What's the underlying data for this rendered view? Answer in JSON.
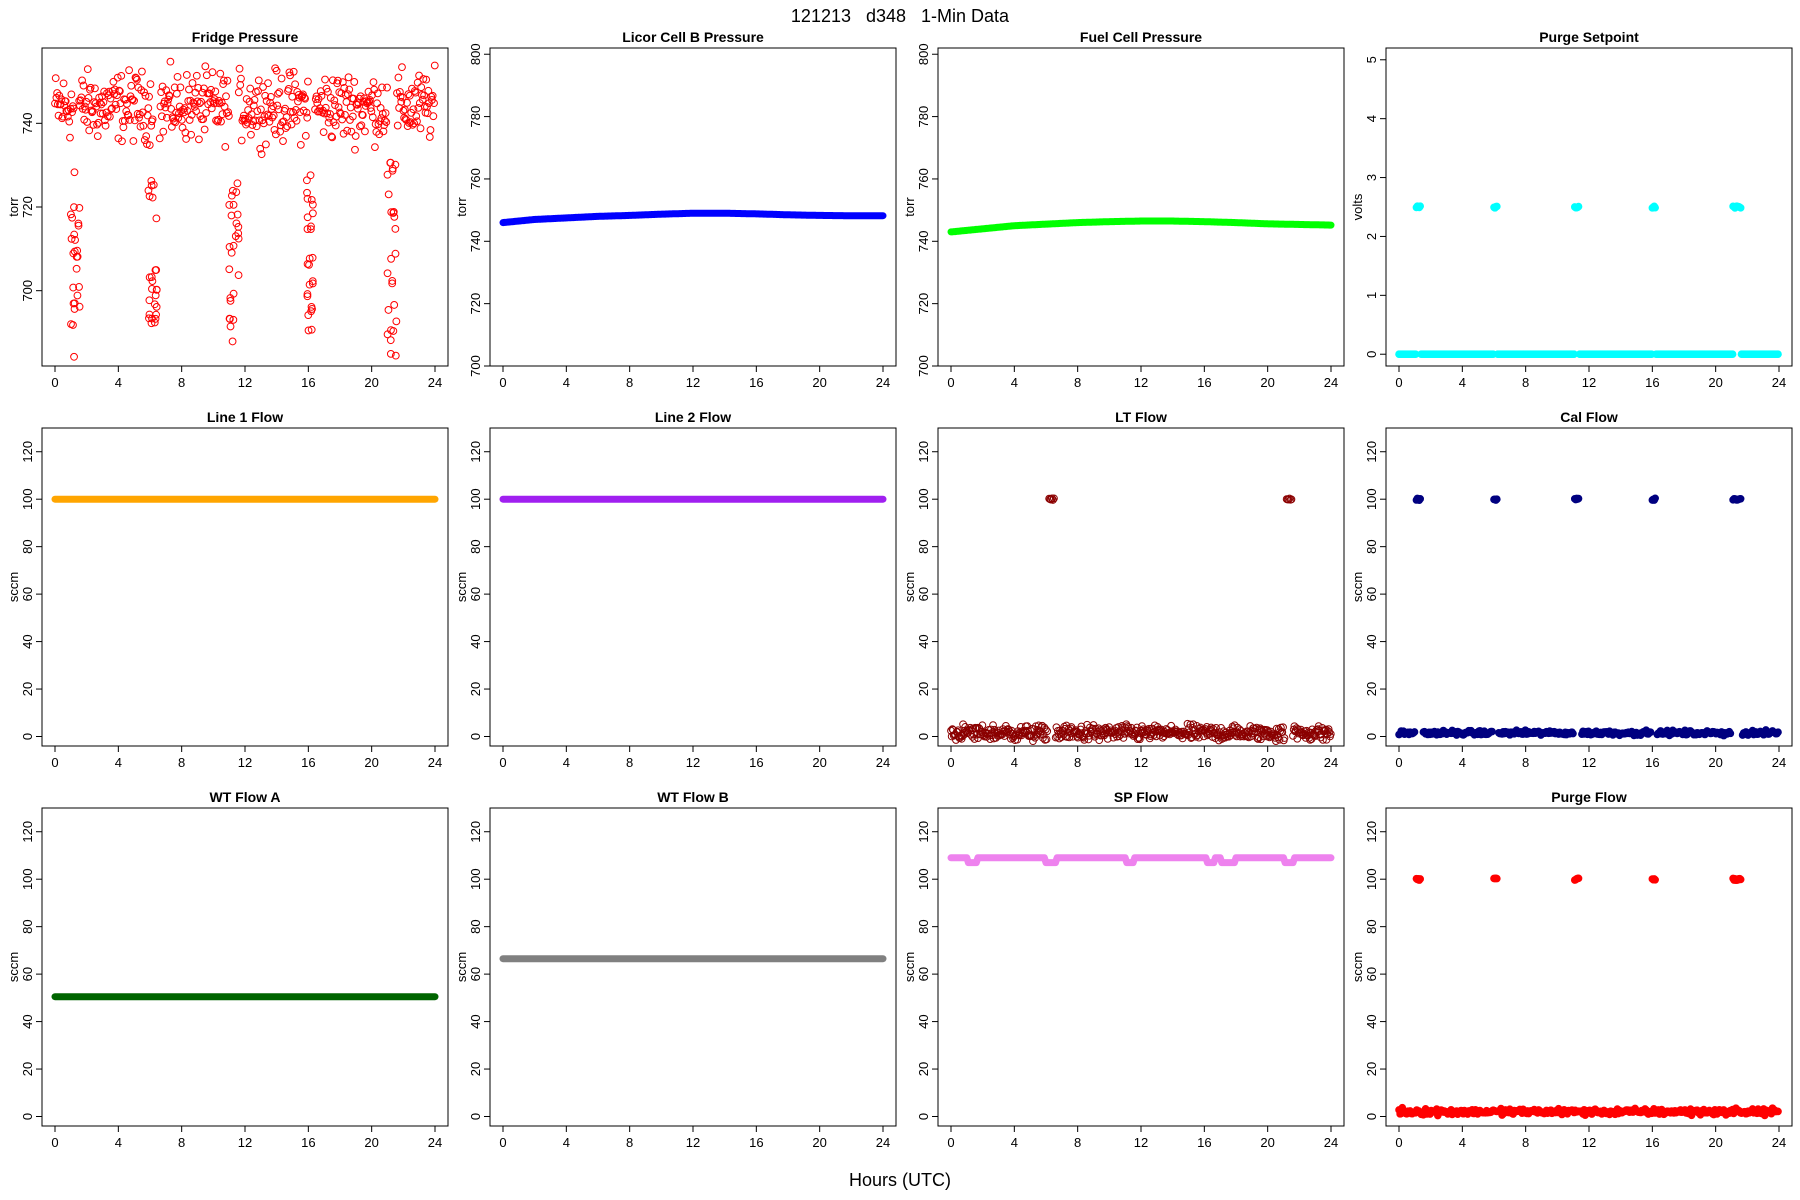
{
  "title": "121213   d348   1-Min Data",
  "xlabel": "Hours (UTC)",
  "chart_data": [
    {
      "type": "scatter",
      "title": "Fridge Pressure",
      "ylabel": "torr",
      "color": "#ff0000",
      "marker": "open",
      "ylim": [
        682,
        758
      ],
      "xlim": [
        0,
        24
      ],
      "yticks": [
        700,
        720,
        740
      ],
      "xticks": [
        0,
        4,
        8,
        12,
        16,
        20,
        24
      ],
      "baseline": {
        "mean": 744,
        "spread": 5
      },
      "gaps": [
        [
          1.2,
          1.5
        ],
        [
          6.2,
          6.6
        ],
        [
          11.0,
          11.6
        ],
        [
          16.0,
          16.4
        ],
        [
          21.0,
          21.6
        ]
      ],
      "dips": [
        {
          "x_range": [
            1.0,
            1.6
          ],
          "y_range": [
            684,
            729
          ]
        },
        {
          "x_range": [
            5.9,
            6.5
          ],
          "y_range": [
            688,
            727
          ]
        },
        {
          "x_range": [
            11.0,
            11.6
          ],
          "y_range": [
            686,
            728
          ]
        },
        {
          "x_range": [
            15.9,
            16.3
          ],
          "y_range": [
            688,
            729
          ]
        },
        {
          "x_range": [
            21.0,
            21.6
          ],
          "y_range": [
            683,
            732
          ]
        }
      ]
    },
    {
      "type": "line",
      "title": "Licor Cell B Pressure",
      "ylabel": "torr",
      "color": "#0000ff",
      "ylim": [
        700,
        802
      ],
      "xlim": [
        0,
        24
      ],
      "yticks": [
        700,
        720,
        740,
        760,
        780,
        800
      ],
      "xticks": [
        0,
        4,
        8,
        12,
        16,
        20,
        24
      ],
      "x": [
        0,
        2,
        4,
        6,
        8,
        10,
        12,
        14,
        16,
        18,
        20,
        22,
        24
      ],
      "y": [
        746,
        747,
        747.5,
        748,
        748.3,
        748.7,
        749,
        749,
        748.8,
        748.5,
        748.3,
        748.2,
        748.2
      ]
    },
    {
      "type": "line",
      "title": "Fuel Cell Pressure",
      "ylabel": "torr",
      "color": "#00ff00",
      "ylim": [
        700,
        802
      ],
      "xlim": [
        0,
        24
      ],
      "yticks": [
        700,
        720,
        740,
        760,
        780,
        800
      ],
      "xticks": [
        0,
        4,
        8,
        12,
        16,
        20,
        24
      ],
      "x": [
        0,
        2,
        4,
        6,
        8,
        10,
        12,
        14,
        16,
        18,
        20,
        22,
        24
      ],
      "y": [
        743,
        744,
        745,
        745.5,
        746,
        746.3,
        746.5,
        746.5,
        746.3,
        746,
        745.6,
        745.4,
        745.2
      ]
    },
    {
      "type": "scatter",
      "title": "Purge Setpoint",
      "ylabel": "volts",
      "color": "#00ffff",
      "marker": "filled",
      "ylim": [
        -0.2,
        5.2
      ],
      "xlim": [
        0,
        24
      ],
      "yticks": [
        0,
        1,
        2,
        3,
        4,
        5
      ],
      "xticks": [
        0,
        4,
        8,
        12,
        16,
        20,
        24
      ],
      "baseline_value": 0,
      "pulse_value": 2.5,
      "pulses": [
        [
          1.1,
          1.4
        ],
        [
          6.0,
          6.2
        ],
        [
          11.1,
          11.4
        ],
        [
          16.0,
          16.2
        ],
        [
          21.1,
          21.6
        ]
      ]
    },
    {
      "type": "line",
      "title": "Line 1 Flow",
      "ylabel": "sccm",
      "color": "#ffa500",
      "ylim": [
        -4,
        130
      ],
      "xlim": [
        0,
        24
      ],
      "yticks": [
        0,
        20,
        40,
        60,
        80,
        100,
        120
      ],
      "xticks": [
        0,
        4,
        8,
        12,
        16,
        20,
        24
      ],
      "x": [
        0,
        24
      ],
      "y": [
        100,
        100
      ]
    },
    {
      "type": "line",
      "title": "Line 2 Flow",
      "ylabel": "sccm",
      "color": "#a020f0",
      "ylim": [
        -4,
        130
      ],
      "xlim": [
        0,
        24
      ],
      "yticks": [
        0,
        20,
        40,
        60,
        80,
        100,
        120
      ],
      "xticks": [
        0,
        4,
        8,
        12,
        16,
        20,
        24
      ],
      "x": [
        0,
        24
      ],
      "y": [
        100,
        100
      ]
    },
    {
      "type": "scatter",
      "title": "LT Flow",
      "ylabel": "sccm",
      "color": "#8b0000",
      "marker": "open",
      "ylim": [
        -4,
        130
      ],
      "xlim": [
        0,
        24
      ],
      "yticks": [
        0,
        20,
        40,
        60,
        80,
        100,
        120
      ],
      "xticks": [
        0,
        4,
        8,
        12,
        16,
        20,
        24
      ],
      "baseline": {
        "mean": 1.5,
        "spread": 2
      },
      "gaps": [
        [
          6.1,
          6.6
        ],
        [
          21.1,
          21.6
        ]
      ],
      "pulse_value": 100,
      "pulses": [
        [
          6.2,
          6.5
        ],
        [
          21.2,
          21.5
        ]
      ]
    },
    {
      "type": "scatter",
      "title": "Cal Flow",
      "ylabel": "sccm",
      "color": "#000080",
      "marker": "filled",
      "ylim": [
        -4,
        130
      ],
      "xlim": [
        0,
        24
      ],
      "yticks": [
        0,
        20,
        40,
        60,
        80,
        100,
        120
      ],
      "xticks": [
        0,
        4,
        8,
        12,
        16,
        20,
        24
      ],
      "baseline": {
        "mean": 1.5,
        "spread": 0.6
      },
      "gaps": [
        [
          1.0,
          1.5
        ],
        [
          5.9,
          6.3
        ],
        [
          11.0,
          11.5
        ],
        [
          15.9,
          16.3
        ],
        [
          21.0,
          21.7
        ]
      ],
      "pulse_value": 100,
      "pulses": [
        [
          1.1,
          1.4
        ],
        [
          6.0,
          6.2
        ],
        [
          11.1,
          11.4
        ],
        [
          16.0,
          16.2
        ],
        [
          21.1,
          21.6
        ]
      ]
    },
    {
      "type": "line",
      "title": "WT Flow A",
      "ylabel": "sccm",
      "color": "#006400",
      "ylim": [
        -4,
        130
      ],
      "xlim": [
        0,
        24
      ],
      "yticks": [
        0,
        20,
        40,
        60,
        80,
        100,
        120
      ],
      "xticks": [
        0,
        4,
        8,
        12,
        16,
        20,
        24
      ],
      "x": [
        0,
        24
      ],
      "y": [
        50.5,
        50.5
      ]
    },
    {
      "type": "line",
      "title": "WT Flow B",
      "ylabel": "sccm",
      "color": "#808080",
      "ylim": [
        -4,
        130
      ],
      "xlim": [
        0,
        24
      ],
      "yticks": [
        0,
        20,
        40,
        60,
        80,
        100,
        120
      ],
      "xticks": [
        0,
        4,
        8,
        12,
        16,
        20,
        24
      ],
      "x": [
        0,
        24
      ],
      "y": [
        66.5,
        66.5
      ]
    },
    {
      "type": "line",
      "title": "SP Flow",
      "ylabel": "sccm",
      "color": "#ee82ee",
      "ylim": [
        -4,
        130
      ],
      "xlim": [
        0,
        24
      ],
      "yticks": [
        0,
        20,
        40,
        60,
        80,
        100,
        120
      ],
      "xticks": [
        0,
        4,
        8,
        12,
        16,
        20,
        24
      ],
      "x": [
        0,
        1.0,
        1.1,
        1.6,
        1.7,
        5.9,
        6.0,
        6.6,
        6.7,
        11.0,
        11.1,
        11.5,
        11.6,
        16.1,
        16.2,
        16.6,
        16.7,
        17.0,
        17.1,
        17.9,
        18.0,
        21.0,
        21.1,
        21.6,
        21.7,
        24
      ],
      "y": [
        109,
        109,
        107,
        107,
        109,
        109,
        107,
        107,
        109,
        109,
        107,
        107,
        109,
        109,
        107,
        107,
        109,
        109,
        107,
        107,
        109,
        109,
        107,
        107,
        109,
        109
      ]
    },
    {
      "type": "scatter",
      "title": "Purge Flow",
      "ylabel": "sccm",
      "color": "#ff0000",
      "marker": "filled",
      "ylim": [
        -4,
        130
      ],
      "xlim": [
        0,
        24
      ],
      "yticks": [
        0,
        20,
        40,
        60,
        80,
        100,
        120
      ],
      "xticks": [
        0,
        4,
        8,
        12,
        16,
        20,
        24
      ],
      "baseline": {
        "mean": 2,
        "spread": 0.8
      },
      "gaps": [],
      "pulse_value": 100,
      "pulses": [
        [
          1.1,
          1.4
        ],
        [
          6.0,
          6.2
        ],
        [
          11.1,
          11.4
        ],
        [
          16.0,
          16.2
        ],
        [
          21.1,
          21.6
        ]
      ]
    }
  ]
}
